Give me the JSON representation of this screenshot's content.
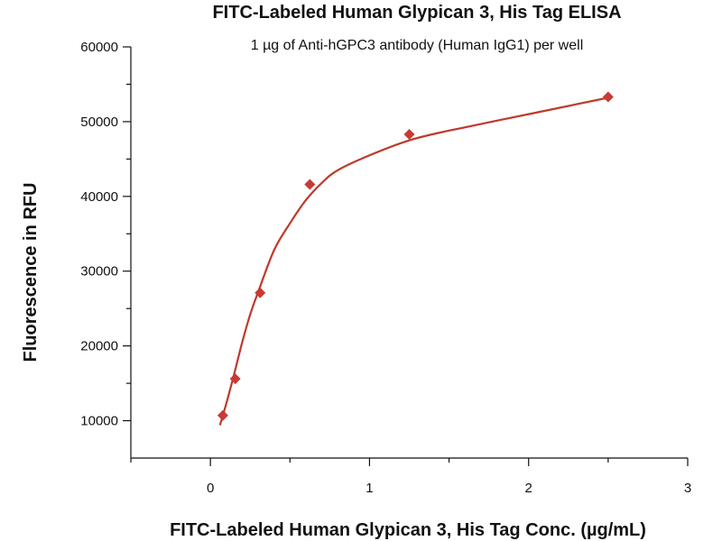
{
  "chart_data": {
    "type": "scatter",
    "title": "FITC-Labeled Human Glypican 3, His Tag ELISA",
    "subtitle": "1 µg of Anti-hGPC3 antibody (Human IgG1) per well",
    "xlabel": "FITC-Labeled Human Glypican 3, His Tag Conc. (µg/mL)",
    "ylabel": "Fluorescence in RFU",
    "xlim": [
      -0.5,
      3
    ],
    "ylim": [
      5000,
      60000
    ],
    "x_ticks": [
      0,
      1,
      2,
      3
    ],
    "x_minor_ticks": [
      -0.5,
      0.5,
      1.5,
      2.5
    ],
    "y_ticks": [
      10000,
      20000,
      30000,
      40000,
      50000,
      60000
    ],
    "y_minor_ticks": [
      15000,
      25000,
      35000,
      45000,
      55000
    ],
    "grid": false,
    "legend": "none",
    "series": [
      {
        "color": "#c73a35",
        "marker": "diamond",
        "x": [
          0.078,
          0.156,
          0.3125,
          0.625,
          1.25,
          2.5
        ],
        "y": [
          10700,
          15600,
          27100,
          41600,
          48300,
          53300
        ]
      }
    ],
    "fit_curve": {
      "color": "#c0392b",
      "x": [
        0.06,
        0.1,
        0.15,
        0.2,
        0.25,
        0.3,
        0.4,
        0.5,
        0.6,
        0.7,
        0.8,
        1.0,
        1.25,
        1.5,
        2.0,
        2.5
      ],
      "y": [
        9400,
        12300,
        16300,
        20500,
        24200,
        27200,
        32800,
        36400,
        39500,
        41800,
        43500,
        45500,
        47500,
        48800,
        51000,
        53200
      ]
    }
  }
}
